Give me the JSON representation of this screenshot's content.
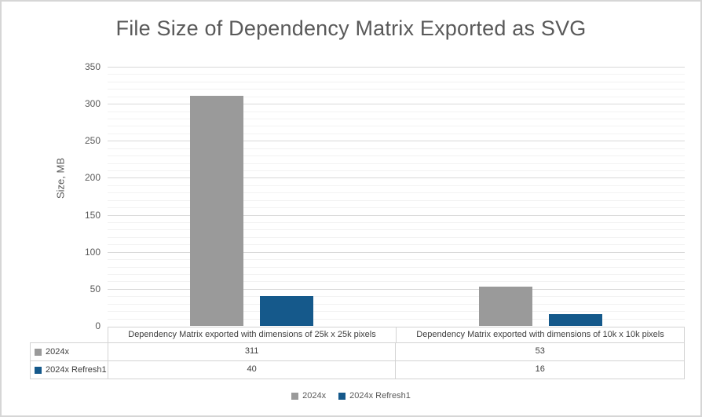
{
  "chart_data": {
    "type": "bar",
    "title": "File Size of Dependency Matrix Exported as SVG",
    "xlabel": "",
    "ylabel": "Size, MB",
    "categories": [
      "Dependency Matrix exported with dimensions of 25k x 25k pixels",
      "Dependency Matrix exported with dimensions of 10k x 10k pixels"
    ],
    "series": [
      {
        "name": "2024x",
        "color": "#9a9a9a",
        "values": [
          311,
          53
        ]
      },
      {
        "name": "2024x Refresh1",
        "color": "#15598b",
        "values": [
          40,
          16
        ]
      }
    ],
    "ylim": [
      0,
      350
    ],
    "y_major_ticks": [
      0,
      50,
      100,
      150,
      200,
      250,
      300,
      350
    ],
    "y_minor_step": 10,
    "grid": true,
    "legend_position": "bottom",
    "data_table_shown": true
  },
  "style": {
    "title_color": "#595959",
    "axis_text_color": "#595959",
    "table_text_color": "#404040",
    "major_gridline_color": "#d9d9d9",
    "minor_gridline_color": "#f2f2f2",
    "table_border_color": "#d3d3d3",
    "chart_border_color": "#d6d6d6",
    "background_color": "#ffffff"
  }
}
